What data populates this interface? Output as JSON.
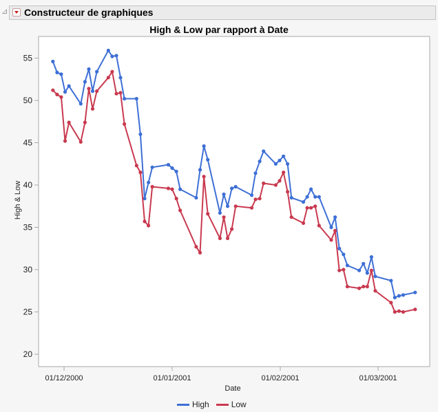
{
  "header": {
    "title": "Constructeur de graphiques",
    "menu_icon": "red-dropdown-triangle",
    "disclosure_icon": "gray-disclosure-triangle"
  },
  "chart": {
    "title": "High & Low par rapport à Date",
    "ylabel": "High & Low",
    "xlabel": "Date",
    "legend": [
      {
        "name": "High",
        "color": "#3d6fd6"
      },
      {
        "name": "Low",
        "color": "#c9394f"
      }
    ]
  },
  "chart_data": {
    "type": "line",
    "title": "High & Low par rapport à Date",
    "xlabel": "Date",
    "ylabel": "High & Low",
    "ylim": [
      18.8,
      57.1
    ],
    "yticks": [
      20,
      25,
      30,
      35,
      40,
      45,
      50,
      55
    ],
    "xticks": [
      "01/12/2000",
      "01/01/2001",
      "01/02/2001",
      "01/03/2001"
    ],
    "xtick_days": [
      0,
      31,
      62,
      90
    ],
    "x_unit": "days since 01/12/2000",
    "grid": false,
    "legend_position": "bottom",
    "x": [
      -3.2,
      -2.0,
      -0.8,
      0.3,
      1.4,
      4.8,
      6.0,
      7.1,
      8.2,
      9.4,
      12.7,
      13.8,
      15.0,
      16.2,
      17.3,
      20.8,
      21.9,
      23.1,
      24.2,
      25.3,
      29.9,
      31.0,
      32.2,
      33.3,
      37.9,
      39.0,
      40.1,
      41.2,
      44.7,
      45.8,
      46.9,
      48.1,
      49.2,
      53.8,
      54.9,
      56.1,
      57.2,
      60.7,
      61.8,
      62.9,
      64.1,
      65.2,
      68.6,
      69.7,
      70.8,
      72.0,
      73.1,
      76.6,
      77.7,
      78.9,
      80.1,
      81.2,
      84.6,
      85.8,
      86.9,
      88.1,
      89.2,
      93.7,
      94.8,
      96.0,
      97.2,
      100.6
    ],
    "series": [
      {
        "name": "High",
        "color": "#3d6fd6",
        "values": [
          54.6,
          53.3,
          53.1,
          51.0,
          51.7,
          49.6,
          52.2,
          53.7,
          51.1,
          53.4,
          55.9,
          55.2,
          55.3,
          52.7,
          50.2,
          50.2,
          46.0,
          38.4,
          40.3,
          42.1,
          42.4,
          42.0,
          41.6,
          39.5,
          38.5,
          41.8,
          44.6,
          43.0,
          36.7,
          38.9,
          37.5,
          39.6,
          39.8,
          38.8,
          41.4,
          42.8,
          44.0,
          42.5,
          42.9,
          43.4,
          42.5,
          38.5,
          38.0,
          38.6,
          39.5,
          38.6,
          38.6,
          35.0,
          36.2,
          32.5,
          31.8,
          30.5,
          29.9,
          30.7,
          29.6,
          31.5,
          29.2,
          28.7,
          26.7,
          26.9,
          27.0,
          27.3
        ]
      },
      {
        "name": "Low",
        "color": "#c9394f",
        "values": [
          51.2,
          50.7,
          50.4,
          45.2,
          47.4,
          45.1,
          47.4,
          51.4,
          49.0,
          51.1,
          52.7,
          53.4,
          50.8,
          50.9,
          47.2,
          42.3,
          41.5,
          35.7,
          35.2,
          39.8,
          39.6,
          39.5,
          38.4,
          37.0,
          32.7,
          32.0,
          41.0,
          36.6,
          33.7,
          36.2,
          33.7,
          34.8,
          37.5,
          37.3,
          38.3,
          38.4,
          40.2,
          40.0,
          40.5,
          41.5,
          39.2,
          36.2,
          35.5,
          37.3,
          37.3,
          37.5,
          35.2,
          33.5,
          34.6,
          29.9,
          30.0,
          28.0,
          27.8,
          28.0,
          28.0,
          29.9,
          27.5,
          26.1,
          25.0,
          25.1,
          25.0,
          25.3
        ]
      }
    ]
  }
}
